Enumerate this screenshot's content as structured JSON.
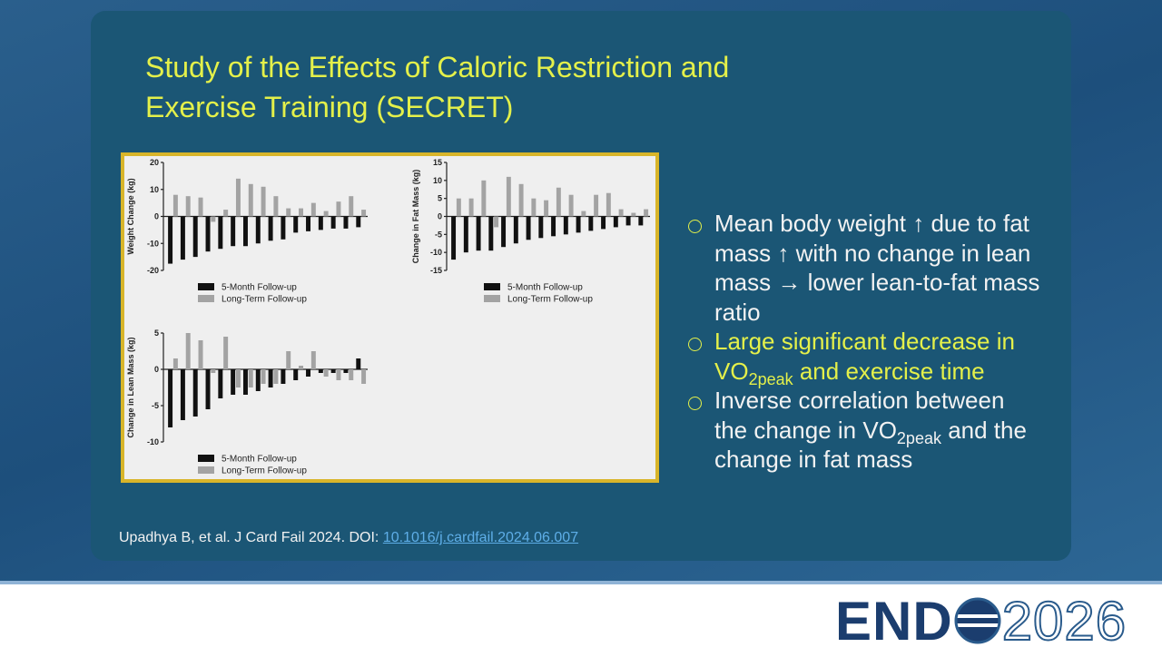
{
  "slide": {
    "title": [
      "Study of the Effects of Caloric Restriction and",
      "Exercise Training (SECRET)"
    ],
    "bullets": [
      {
        "color": "#f2f2f2",
        "runs": [
          "Mean body weight ↑ due to fat mass ↑ with no change in lean mass → lower lean-to-fat mass ratio"
        ]
      },
      {
        "color": "#e4f04a",
        "runs": [
          "Large significant decrease in VO",
          {
            "sub": "2peak"
          },
          " and exercise time"
        ]
      },
      {
        "color": "#f2f2f2",
        "runs": [
          "Inverse correlation between the change in VO",
          {
            "sub": "2peak"
          },
          " and the change in fat mass"
        ]
      }
    ],
    "citation": "Upadhya B, et al. J Card Fail 2024. DOI: ",
    "doi": "10.1016/j.cardfail.2024.06.007",
    "logo": {
      "left": "END",
      "right": "2026"
    }
  },
  "chart_data": [
    {
      "type": "bar",
      "y_label": "Weight  Change (kg)",
      "ylim": [
        -20,
        20
      ],
      "yticks": [
        -20,
        -10,
        0,
        10,
        20
      ],
      "series": [
        {
          "name": "5-Month Follow-up",
          "color": "#111111",
          "values": [
            -17.5,
            -16,
            -15,
            -13,
            -12,
            -11,
            -11,
            -10,
            -9,
            -8.5,
            -6,
            -5.5,
            -5,
            -4.5,
            -4.5,
            -4
          ]
        },
        {
          "name": "Long-Term Follow-up",
          "color": "#a3a3a3",
          "values": [
            8,
            7.5,
            7,
            -2,
            2.5,
            14,
            12,
            11,
            7.5,
            3,
            3,
            5,
            2,
            5.5,
            7.5,
            2.5
          ]
        }
      ]
    },
    {
      "type": "bar",
      "y_label": "Change in Fat Mass (kg)",
      "ylim": [
        -15,
        15
      ],
      "yticks": [
        -15,
        -10,
        -5,
        0,
        5,
        10,
        15
      ],
      "series": [
        {
          "name": "5-Month Follow-up",
          "color": "#111111",
          "values": [
            -12,
            -10,
            -9.5,
            -9.5,
            -8.5,
            -7.5,
            -6.5,
            -6,
            -5.5,
            -5,
            -4.5,
            -4,
            -3.5,
            -3,
            -2.5,
            -2.5
          ]
        },
        {
          "name": "Long-Term Follow-up",
          "color": "#a3a3a3",
          "values": [
            5,
            5,
            10,
            -3,
            11,
            9,
            5,
            4.5,
            8,
            6,
            1.5,
            6,
            6.5,
            2,
            1,
            2
          ]
        }
      ]
    },
    {
      "type": "bar",
      "y_label": "Change in Lean Mass (kg)",
      "ylim": [
        -10,
        5
      ],
      "yticks": [
        -10,
        -5,
        0,
        5
      ],
      "series": [
        {
          "name": "5-Month Follow-up",
          "color": "#111111",
          "values": [
            -8,
            -7,
            -6.5,
            -5.5,
            -4,
            -3.5,
            -3.5,
            -3,
            -2.5,
            -2,
            -1.5,
            -1,
            -0.5,
            -0.5,
            -0.5,
            1.5
          ]
        },
        {
          "name": "Long-Term Follow-up",
          "color": "#a3a3a3",
          "values": [
            1.5,
            5,
            4,
            -0.5,
            4.5,
            -2.5,
            -2.5,
            -2,
            -2,
            2.5,
            0.5,
            2.5,
            -1,
            -1.5,
            -1.5,
            -2
          ]
        }
      ]
    }
  ]
}
